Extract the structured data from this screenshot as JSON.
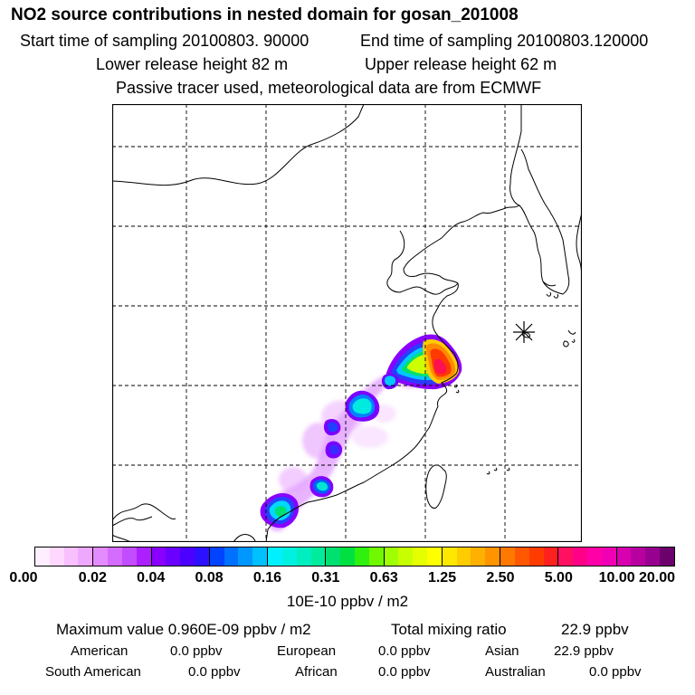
{
  "header": {
    "title": "NO2 source contributions in nested domain for gosan_201008",
    "start_sampling": "Start time of sampling 20100803. 90000",
    "end_sampling": "End time of sampling 20100803.120000",
    "lower_release": "Lower release height   82 m",
    "upper_release": "Upper release height   62 m",
    "tracer_note": "Passive tracer used, meteorological data are from ECMWF"
  },
  "map": {
    "site_marker": "gosan-site-marker",
    "plume_colors": [
      "#b46cff",
      "#8d00ff",
      "#4030ff",
      "#0099ff",
      "#00f0ff",
      "#00e070",
      "#aaff00",
      "#ffff00",
      "#ffaa00",
      "#ff3a00",
      "#ff0090"
    ]
  },
  "colorbar": {
    "ticks": [
      "0.00",
      "0.02",
      "0.04",
      "0.08",
      "0.16",
      "0.31",
      "0.63",
      "1.25",
      "2.50",
      "5.00",
      "10.00",
      "20.00"
    ],
    "bands": [
      [
        "#ffeeff",
        "#ffd8ff",
        "#f8c0ff",
        "#efa8ff"
      ],
      [
        "#e48cff",
        "#d46cff",
        "#c24cff",
        "#ac20ff"
      ],
      [
        "#8a00ff",
        "#6a00ff",
        "#4c00ff",
        "#2c10ff"
      ],
      [
        "#0044ff",
        "#0070ff",
        "#0098ff",
        "#00c0ff"
      ],
      [
        "#00f0ff",
        "#00f0e0",
        "#00eec0",
        "#00ec9c"
      ],
      [
        "#00e070",
        "#00e040",
        "#30f010",
        "#70f800"
      ],
      [
        "#a0ff00",
        "#c8ff00",
        "#e6ff00",
        "#ffff00"
      ],
      [
        "#ffe800",
        "#ffcc00",
        "#ffb000",
        "#ff9400"
      ],
      [
        "#ff7800",
        "#ff5800",
        "#ff3c00",
        "#ff2020"
      ],
      [
        "#ff1060",
        "#ff0088",
        "#ff00a8",
        "#f000b4"
      ],
      [
        "#d800b0",
        "#b800a0",
        "#980090",
        "#6c006c"
      ]
    ],
    "units": "10E-10 ppbv / m2"
  },
  "summary": {
    "max_label": "Maximum value  0.960E-09 ppbv / m2",
    "total_label": "Total mixing ratio",
    "total_value": "22.9 ppbv",
    "regions": [
      {
        "name": "American",
        "value": "0.0 ppbv"
      },
      {
        "name": "European",
        "value": "0.0 ppbv"
      },
      {
        "name": "Asian",
        "value": "22.9 ppbv"
      },
      {
        "name": "South American",
        "value": "0.0 ppbv"
      },
      {
        "name": "African",
        "value": "0.0 ppbv"
      },
      {
        "name": "Australian",
        "value": "0.0 ppbv"
      }
    ]
  }
}
